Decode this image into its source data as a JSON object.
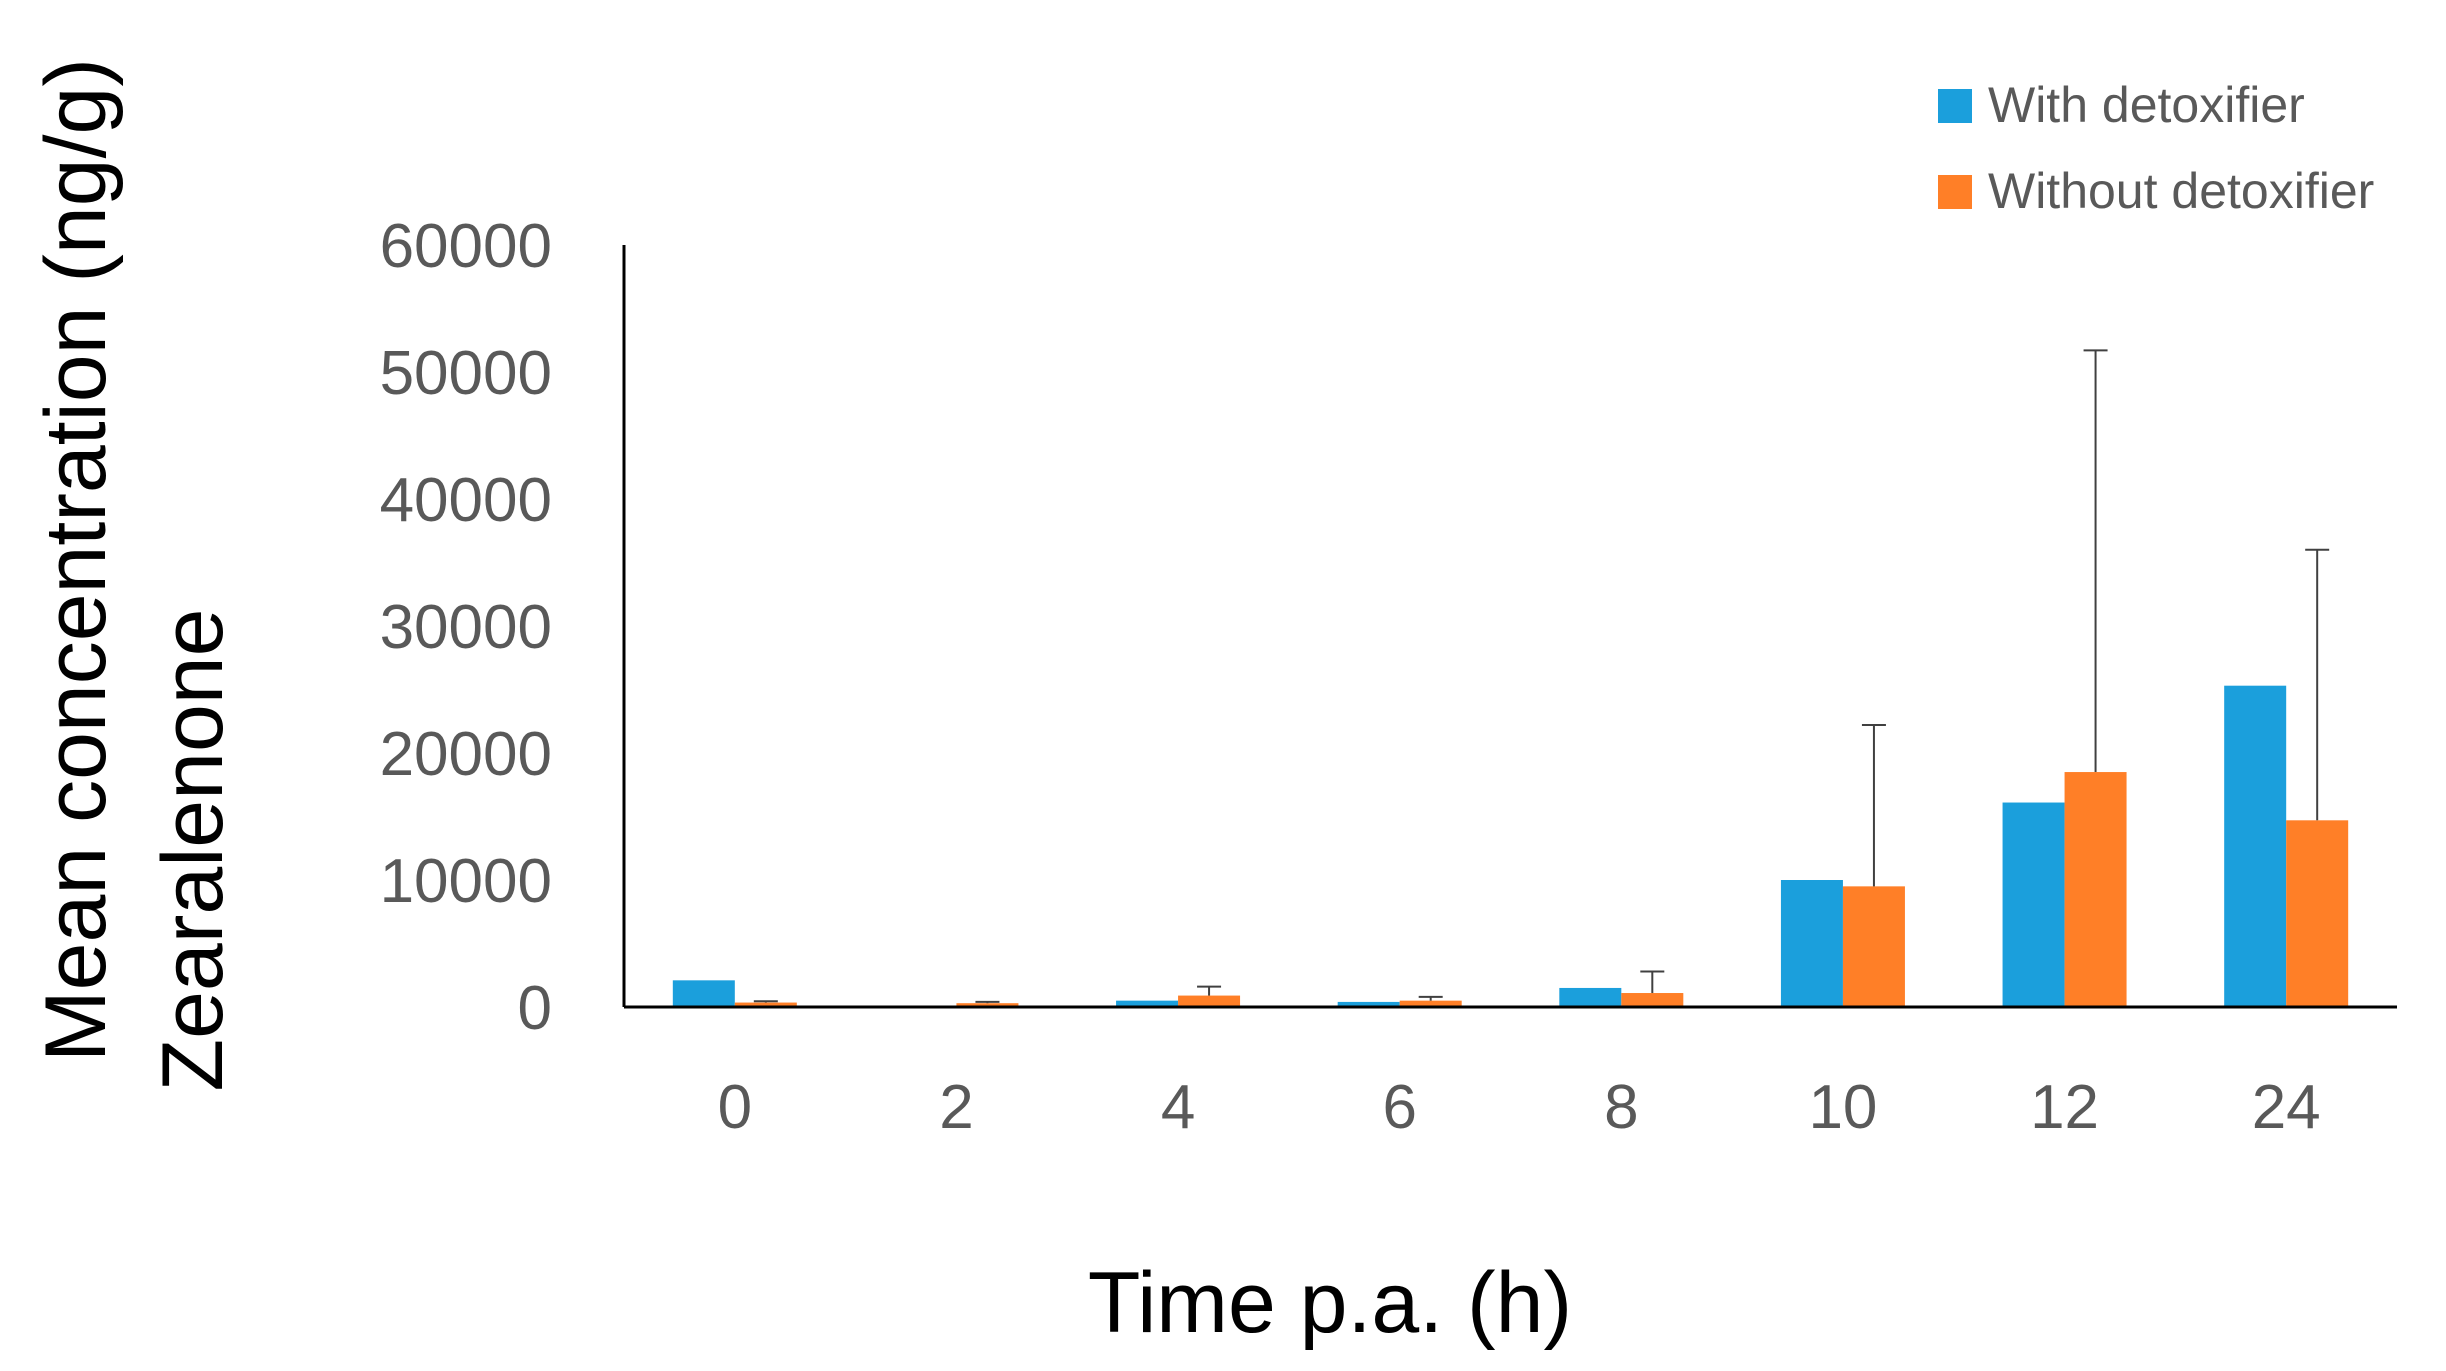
{
  "chart_data": {
    "type": "bar",
    "title": "",
    "xlabel": "Time p.a. (h)",
    "ylabel_lines": [
      "Mean concentration (ng/g)",
      "Zearalenone"
    ],
    "categories": [
      "0",
      "2",
      "4",
      "6",
      "8",
      "10",
      "12",
      "24"
    ],
    "ylim": [
      0,
      60000
    ],
    "yticks": [
      "0",
      "10000",
      "20000",
      "30000",
      "40000",
      "50000",
      "60000"
    ],
    "grid": false,
    "legend_position": "top-right",
    "series": [
      {
        "name": "With detoxifier",
        "color": "#1b9fdc",
        "values": [
          2100,
          0,
          500,
          400,
          1500,
          10000,
          16100,
          25300
        ],
        "error": [
          null,
          null,
          null,
          null,
          null,
          null,
          null,
          null
        ]
      },
      {
        "name": "Without detoxifier",
        "color": "#ff7f27",
        "values": [
          350,
          300,
          900,
          500,
          1100,
          9500,
          18500,
          14700
        ],
        "error": [
          100,
          100,
          700,
          300,
          1700,
          12700,
          33200,
          21300
        ]
      }
    ]
  }
}
